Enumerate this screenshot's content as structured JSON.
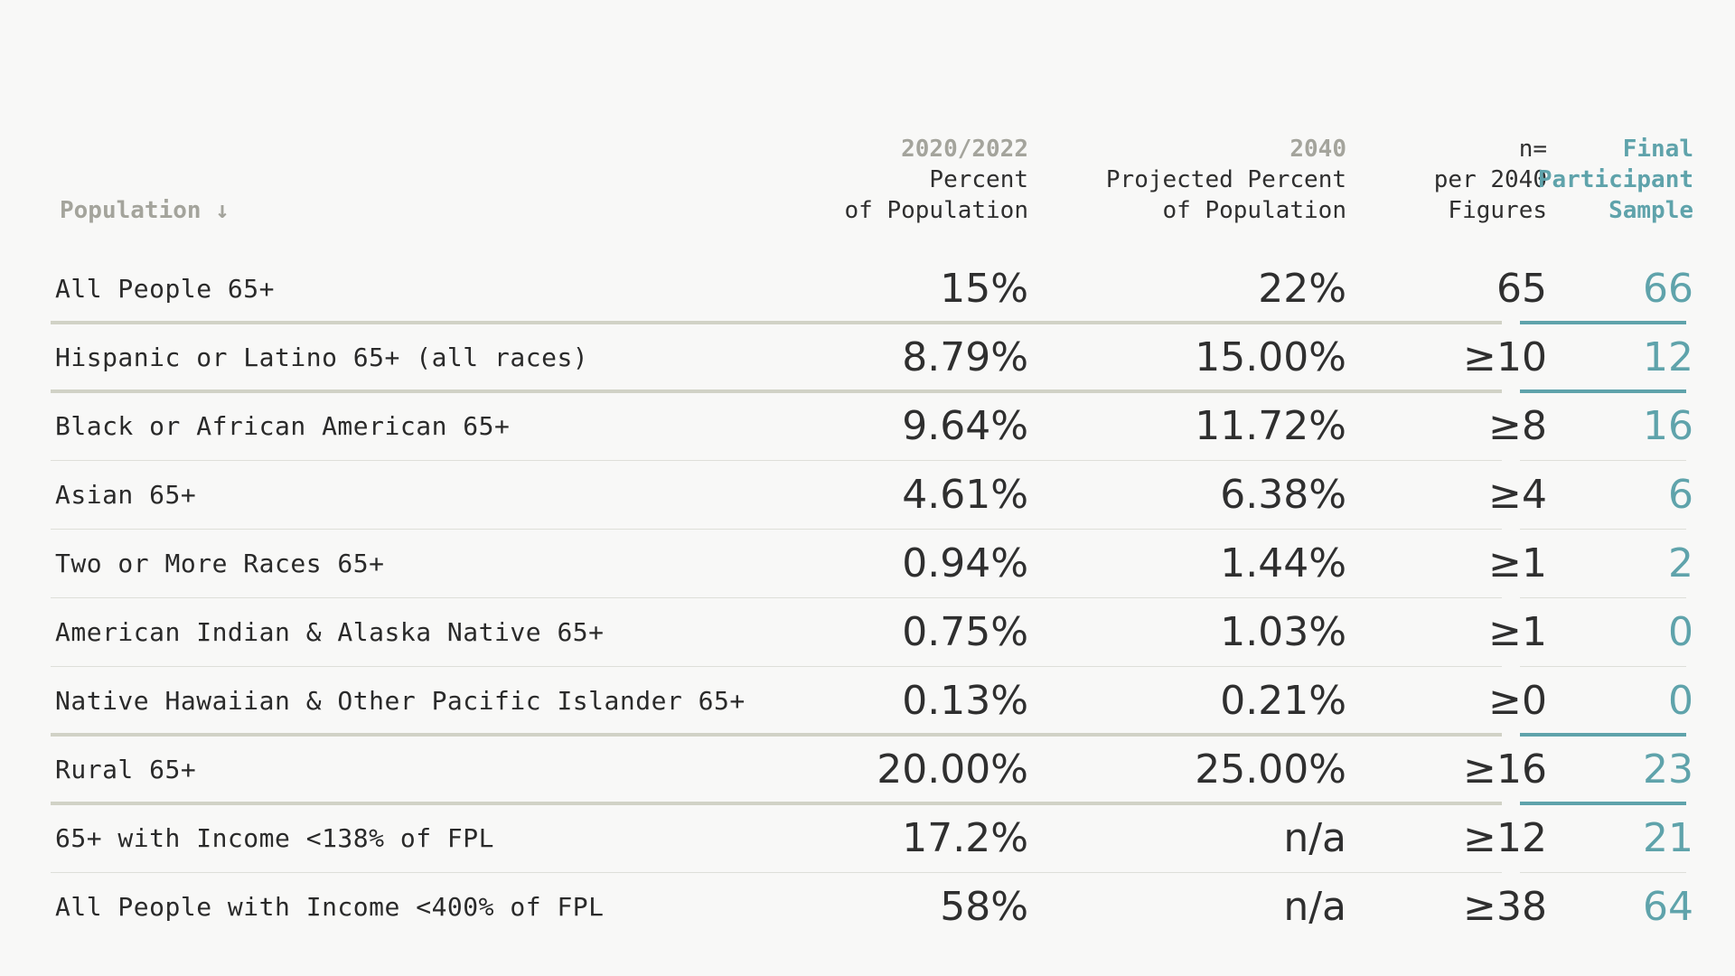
{
  "header": {
    "population_label": "Population ↓",
    "col1": {
      "year": "2020/2022",
      "line1": "Percent",
      "line2": "of Population"
    },
    "col2": {
      "year": "2040",
      "line1": "Projected Percent",
      "line2": "of Population"
    },
    "col3": {
      "line0": "n=",
      "line1": "per 2040",
      "line2": "Figures"
    },
    "col4": {
      "line0": "Final",
      "line1": "Participant",
      "line2": "Sample"
    }
  },
  "colors": {
    "accent": "#5fa3ab",
    "muted": "#a4a49c",
    "text": "#2a2a2a",
    "background": "#f8f8f7"
  },
  "rows": [
    {
      "label": "All People 65+",
      "pct_2020": "15%",
      "pct_2040": "22%",
      "n": "65",
      "sample": "66"
    },
    {
      "label": "Hispanic or Latino 65+ (all races)",
      "pct_2020": "8.79%",
      "pct_2040": "15.00%",
      "n": "≥10",
      "sample": "12"
    },
    {
      "label": "Black or African American 65+",
      "pct_2020": "9.64%",
      "pct_2040": "11.72%",
      "n": "≥8",
      "sample": "16"
    },
    {
      "label": "Asian 65+",
      "pct_2020": "4.61%",
      "pct_2040": "6.38%",
      "n": "≥4",
      "sample": "6"
    },
    {
      "label": "Two or More Races 65+",
      "pct_2020": "0.94%",
      "pct_2040": "1.44%",
      "n": "≥1",
      "sample": "2"
    },
    {
      "label": "American Indian & Alaska Native 65+",
      "pct_2020": "0.75%",
      "pct_2040": "1.03%",
      "n": "≥1",
      "sample": "0"
    },
    {
      "label": "Native Hawaiian & Other Pacific Islander 65+",
      "pct_2020": "0.13%",
      "pct_2040": "0.21%",
      "n": "≥0",
      "sample": "0"
    },
    {
      "label": "Rural 65+",
      "pct_2020": "20.00%",
      "pct_2040": "25.00%",
      "n": "≥16",
      "sample": "23"
    },
    {
      "label": "65+ with Income <138% of FPL",
      "pct_2020": "17.2%",
      "pct_2040": "n/a",
      "n": "≥12",
      "sample": "21"
    },
    {
      "label": "All People with Income <400% of FPL",
      "pct_2020": "58%",
      "pct_2040": "n/a",
      "n": "≥38",
      "sample": "64"
    }
  ]
}
